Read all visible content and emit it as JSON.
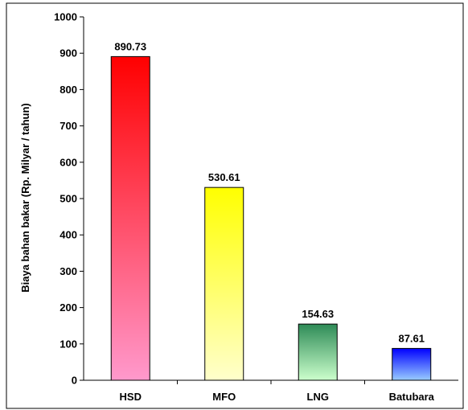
{
  "chart_data": {
    "type": "bar",
    "categories": [
      "HSD",
      "MFO",
      "LNG",
      "Batubara"
    ],
    "values": [
      890.73,
      530.61,
      154.63,
      87.61
    ],
    "data_labels": [
      "890.73",
      "530.61",
      "154.63",
      "87.61"
    ],
    "ylabel": "Biaya bahan bakar (Rp. Milyar / tahun)",
    "xlabel": "",
    "ylim": [
      0,
      1000
    ],
    "yticks": [
      0,
      100,
      200,
      300,
      400,
      500,
      600,
      700,
      800,
      900,
      1000
    ],
    "grid": false,
    "legend": "none",
    "bar_colors": [
      {
        "top": "#ff0000",
        "bottom": "#ff99cc"
      },
      {
        "top": "#ffff00",
        "bottom": "#ffffcc"
      },
      {
        "top": "#2e8b57",
        "bottom": "#ccffcc"
      },
      {
        "top": "#0000ff",
        "bottom": "#99ccff"
      }
    ]
  }
}
